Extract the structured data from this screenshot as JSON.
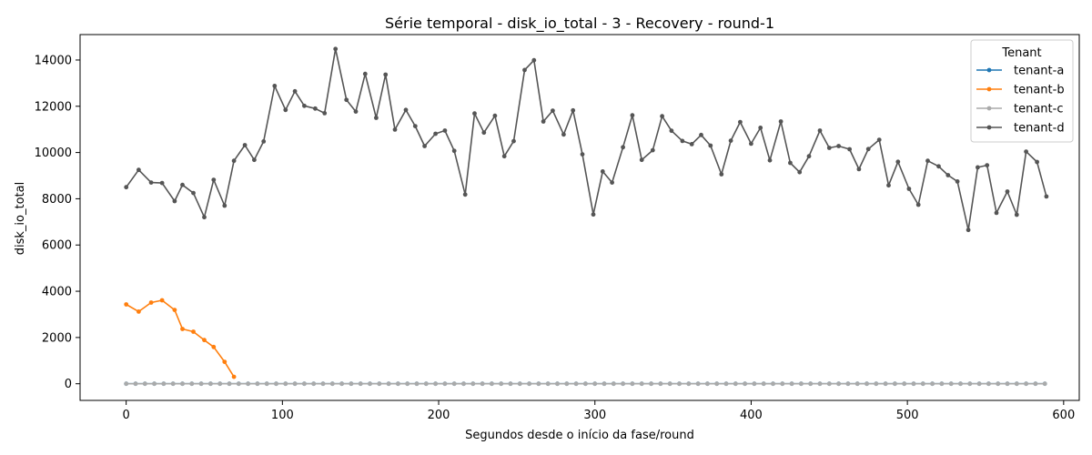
{
  "chart_data": {
    "type": "line",
    "title": "Série temporal - disk_io_total - 3 - Recovery - round-1",
    "xlabel": "Segundos desde o início da fase/round",
    "ylabel": "disk_io_total",
    "xlim": [
      -29.5,
      610
    ],
    "ylim": [
      -720,
      15100
    ],
    "xticks": [
      0,
      100,
      200,
      300,
      400,
      500,
      600
    ],
    "yticks": [
      0,
      2000,
      4000,
      6000,
      8000,
      10000,
      12000,
      14000
    ],
    "grid": false,
    "legend": {
      "title": "Tenant",
      "position": "top-right"
    },
    "x": [
      0,
      6,
      12,
      18,
      24,
      30,
      36,
      42,
      48,
      54,
      60,
      66,
      72,
      78,
      84,
      90,
      96,
      102,
      108,
      114,
      120,
      126,
      132,
      138,
      144,
      150,
      156,
      162,
      168,
      174,
      180,
      186,
      192,
      198,
      204,
      210,
      216,
      222,
      228,
      234,
      240,
      246,
      252,
      258,
      264,
      270,
      276,
      282,
      288,
      294,
      300,
      306,
      312,
      318,
      324,
      330,
      336,
      342,
      348,
      354,
      360,
      366,
      372,
      378,
      384,
      390,
      396,
      402,
      408,
      414,
      420,
      426,
      432,
      438,
      444,
      450,
      456,
      462,
      468,
      474,
      480,
      486,
      492,
      498,
      504,
      510,
      516,
      522,
      528,
      534,
      540,
      546,
      552,
      558,
      564,
      570,
      576,
      582,
      588
    ],
    "series": [
      {
        "name": "tenant-a",
        "color": "#1f77b4",
        "x": [
          0,
          6,
          12,
          18,
          24,
          30,
          36,
          42,
          48,
          54,
          60,
          66,
          72,
          78,
          84,
          90,
          96,
          102,
          108,
          114,
          120,
          126,
          132,
          138,
          144,
          150,
          156,
          162,
          168,
          174,
          180,
          186,
          192,
          198,
          204,
          210,
          216,
          222,
          228,
          234,
          240,
          246,
          252,
          258,
          264,
          270,
          276,
          282,
          288,
          294,
          300,
          306,
          312,
          318,
          324,
          330,
          336,
          342,
          348,
          354,
          360,
          366,
          372,
          378,
          384,
          390,
          396,
          402,
          408,
          414,
          420,
          426,
          432,
          438,
          444,
          450,
          456,
          462,
          468,
          474,
          480,
          486,
          492,
          498,
          504,
          510,
          516,
          522,
          528,
          534,
          540,
          546,
          552,
          558,
          564,
          570,
          576,
          582,
          588
        ],
        "values": [
          0,
          0,
          0,
          0,
          0,
          0,
          0,
          0,
          0,
          0,
          0,
          0,
          0,
          0,
          0,
          0,
          0,
          0,
          0,
          0,
          0,
          0,
          0,
          0,
          0,
          0,
          0,
          0,
          0,
          0,
          0,
          0,
          0,
          0,
          0,
          0,
          0,
          0,
          0,
          0,
          0,
          0,
          0,
          0,
          0,
          0,
          0,
          0,
          0,
          0,
          0,
          0,
          0,
          0,
          0,
          0,
          0,
          0,
          0,
          0,
          0,
          0,
          0,
          0,
          0,
          0,
          0,
          0,
          0,
          0,
          0,
          0,
          0,
          0,
          0,
          0,
          0,
          0,
          0,
          0,
          0,
          0,
          0,
          0,
          0,
          0,
          0,
          0,
          0,
          0,
          0,
          0,
          0,
          0,
          0,
          0,
          0,
          0,
          0
        ]
      },
      {
        "name": "tenant-b",
        "color": "#ff7f0e",
        "x": [
          0,
          8,
          16,
          23,
          31,
          36,
          43,
          50,
          56,
          63,
          69
        ],
        "values": [
          3430,
          3120,
          3510,
          3610,
          3190,
          2370,
          2250,
          1890,
          1590,
          950,
          300
        ]
      },
      {
        "name": "tenant-c",
        "color": "#aaaaaa",
        "x": [
          0,
          6,
          12,
          18,
          24,
          30,
          36,
          42,
          48,
          54,
          60,
          66,
          72,
          78,
          84,
          90,
          96,
          102,
          108,
          114,
          120,
          126,
          132,
          138,
          144,
          150,
          156,
          162,
          168,
          174,
          180,
          186,
          192,
          198,
          204,
          210,
          216,
          222,
          228,
          234,
          240,
          246,
          252,
          258,
          264,
          270,
          276,
          282,
          288,
          294,
          300,
          306,
          312,
          318,
          324,
          330,
          336,
          342,
          348,
          354,
          360,
          366,
          372,
          378,
          384,
          390,
          396,
          402,
          408,
          414,
          420,
          426,
          432,
          438,
          444,
          450,
          456,
          462,
          468,
          474,
          480,
          486,
          492,
          498,
          504,
          510,
          516,
          522,
          528,
          534,
          540,
          546,
          552,
          558,
          564,
          570,
          576,
          582,
          588
        ],
        "values": [
          0,
          0,
          0,
          0,
          0,
          0,
          0,
          0,
          0,
          0,
          0,
          0,
          0,
          0,
          0,
          0,
          0,
          0,
          0,
          0,
          0,
          0,
          0,
          0,
          0,
          0,
          0,
          0,
          0,
          0,
          0,
          0,
          0,
          0,
          0,
          0,
          0,
          0,
          0,
          0,
          0,
          0,
          0,
          0,
          0,
          0,
          0,
          0,
          0,
          0,
          0,
          0,
          0,
          0,
          0,
          0,
          0,
          0,
          0,
          0,
          0,
          0,
          0,
          0,
          0,
          0,
          0,
          0,
          0,
          0,
          0,
          0,
          0,
          0,
          0,
          0,
          0,
          0,
          0,
          0,
          0,
          0,
          0,
          0,
          0,
          0,
          0,
          0,
          0,
          0,
          0,
          0,
          0,
          0,
          0,
          0,
          0,
          0,
          0
        ]
      },
      {
        "name": "tenant-d",
        "color": "#555555",
        "x": [
          0,
          8,
          16,
          23,
          31,
          36,
          43,
          50,
          56,
          63,
          69,
          76,
          82,
          88,
          95,
          102,
          108,
          114,
          121,
          127,
          134,
          141,
          147,
          153,
          160,
          166,
          172,
          179,
          185,
          191,
          198,
          204,
          210,
          217,
          223,
          229,
          236,
          242,
          248,
          255,
          261,
          267,
          273,
          280,
          286,
          292,
          299,
          305,
          311,
          318,
          324,
          330,
          337,
          343,
          349,
          356,
          362,
          368,
          374,
          381,
          387,
          393,
          400,
          406,
          412,
          419,
          425,
          431,
          437,
          444,
          450,
          456,
          463,
          469,
          475,
          482,
          488,
          494,
          501,
          507,
          513,
          520,
          526,
          532,
          539,
          545,
          551,
          557,
          564,
          570,
          576,
          583,
          589
        ],
        "values": [
          8500,
          9250,
          8700,
          8680,
          7900,
          8600,
          8250,
          7200,
          8820,
          7700,
          9640,
          10320,
          9680,
          10480,
          12880,
          11840,
          12650,
          12020,
          11900,
          11700,
          14480,
          12280,
          11770,
          13400,
          11500,
          13370,
          10990,
          11840,
          11140,
          10280,
          10810,
          10950,
          10070,
          8180,
          11690,
          10860,
          11590,
          9840,
          10490,
          13570,
          13990,
          11340,
          11810,
          10780,
          11820,
          9920,
          7320,
          9180,
          8700,
          10230,
          11610,
          9680,
          10100,
          11570,
          10940,
          10500,
          10360,
          10760,
          10300,
          9060,
          10510,
          11320,
          10380,
          11070,
          9660,
          11340,
          9550,
          9150,
          9840,
          10950,
          10200,
          10280,
          10140,
          9280,
          10150,
          10550,
          8580,
          9600,
          8430,
          7740,
          9640,
          9400,
          9020,
          8750,
          6650,
          9360,
          9450,
          7390,
          8310,
          7310,
          10040,
          9590,
          8100
        ]
      }
    ]
  }
}
